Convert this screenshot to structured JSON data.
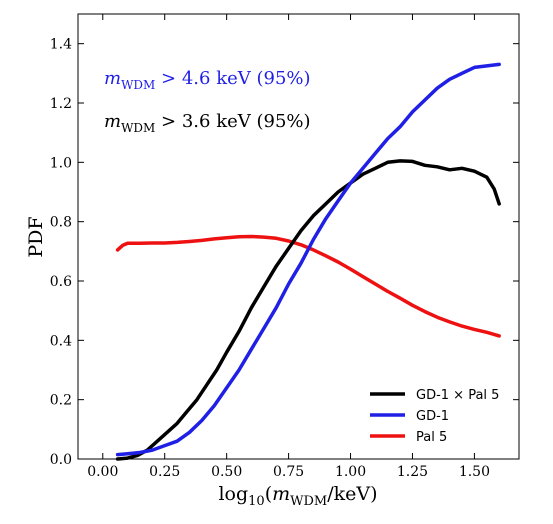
{
  "chart_data": {
    "type": "line",
    "xlabel": "log10(mWDM/keV)",
    "ylabel": "PDF",
    "xlim": [
      -0.1,
      1.68
    ],
    "ylim": [
      0.0,
      1.5
    ],
    "xticks": [
      0.0,
      0.25,
      0.5,
      0.75,
      1.0,
      1.25,
      1.5
    ],
    "xtick_labels": [
      "0.00",
      "0.25",
      "0.50",
      "0.75",
      "1.00",
      "1.25",
      "1.50"
    ],
    "yticks": [
      0.0,
      0.2,
      0.4,
      0.6,
      0.8,
      1.0,
      1.2,
      1.4
    ],
    "ytick_labels": [
      "0.0",
      "0.2",
      "0.4",
      "0.6",
      "0.8",
      "1.0",
      "1.2",
      "1.4"
    ],
    "grid": false,
    "legend_position": "lower-right",
    "annotations": [
      {
        "text": "mWDM > 4.6 keV (95%)",
        "color": "#1f1fe6"
      },
      {
        "text": "mWDM > 3.6 keV (95%)",
        "color": "#000000"
      }
    ],
    "series": [
      {
        "name": "GD-1 × Pal 5",
        "color": "#000000",
        "x": [
          0.06,
          0.1,
          0.14,
          0.18,
          0.22,
          0.26,
          0.3,
          0.34,
          0.38,
          0.42,
          0.46,
          0.5,
          0.55,
          0.6,
          0.65,
          0.7,
          0.75,
          0.8,
          0.85,
          0.9,
          0.95,
          1.0,
          1.05,
          1.1,
          1.15,
          1.2,
          1.25,
          1.3,
          1.35,
          1.4,
          1.45,
          1.5,
          1.55,
          1.58,
          1.6
        ],
        "y": [
          0.0,
          0.003,
          0.012,
          0.03,
          0.06,
          0.09,
          0.12,
          0.16,
          0.2,
          0.25,
          0.3,
          0.36,
          0.43,
          0.51,
          0.58,
          0.65,
          0.71,
          0.77,
          0.82,
          0.86,
          0.9,
          0.93,
          0.96,
          0.98,
          1.0,
          1.005,
          1.003,
          0.99,
          0.985,
          0.975,
          0.98,
          0.97,
          0.95,
          0.91,
          0.86
        ]
      },
      {
        "name": "GD-1",
        "color": "#1f1fe6",
        "x": [
          0.06,
          0.1,
          0.15,
          0.2,
          0.25,
          0.3,
          0.35,
          0.4,
          0.45,
          0.5,
          0.55,
          0.6,
          0.65,
          0.7,
          0.75,
          0.8,
          0.85,
          0.9,
          0.95,
          1.0,
          1.05,
          1.1,
          1.15,
          1.2,
          1.25,
          1.3,
          1.35,
          1.4,
          1.45,
          1.5,
          1.55,
          1.6
        ],
        "y": [
          0.015,
          0.018,
          0.022,
          0.03,
          0.045,
          0.06,
          0.09,
          0.13,
          0.18,
          0.24,
          0.3,
          0.37,
          0.44,
          0.51,
          0.59,
          0.66,
          0.74,
          0.81,
          0.87,
          0.93,
          0.98,
          1.03,
          1.08,
          1.12,
          1.17,
          1.21,
          1.25,
          1.28,
          1.3,
          1.32,
          1.325,
          1.33
        ]
      },
      {
        "name": "Pal 5",
        "color": "#ee1111",
        "x": [
          0.06,
          0.08,
          0.1,
          0.15,
          0.2,
          0.25,
          0.3,
          0.35,
          0.4,
          0.45,
          0.5,
          0.55,
          0.6,
          0.65,
          0.7,
          0.75,
          0.8,
          0.85,
          0.9,
          0.95,
          1.0,
          1.05,
          1.1,
          1.15,
          1.2,
          1.25,
          1.3,
          1.35,
          1.4,
          1.45,
          1.5,
          1.55,
          1.6
        ],
        "y": [
          0.705,
          0.72,
          0.727,
          0.727,
          0.728,
          0.728,
          0.73,
          0.733,
          0.737,
          0.742,
          0.746,
          0.749,
          0.75,
          0.748,
          0.744,
          0.735,
          0.722,
          0.705,
          0.685,
          0.664,
          0.64,
          0.615,
          0.59,
          0.565,
          0.542,
          0.518,
          0.497,
          0.478,
          0.462,
          0.448,
          0.437,
          0.427,
          0.415
        ]
      }
    ]
  }
}
